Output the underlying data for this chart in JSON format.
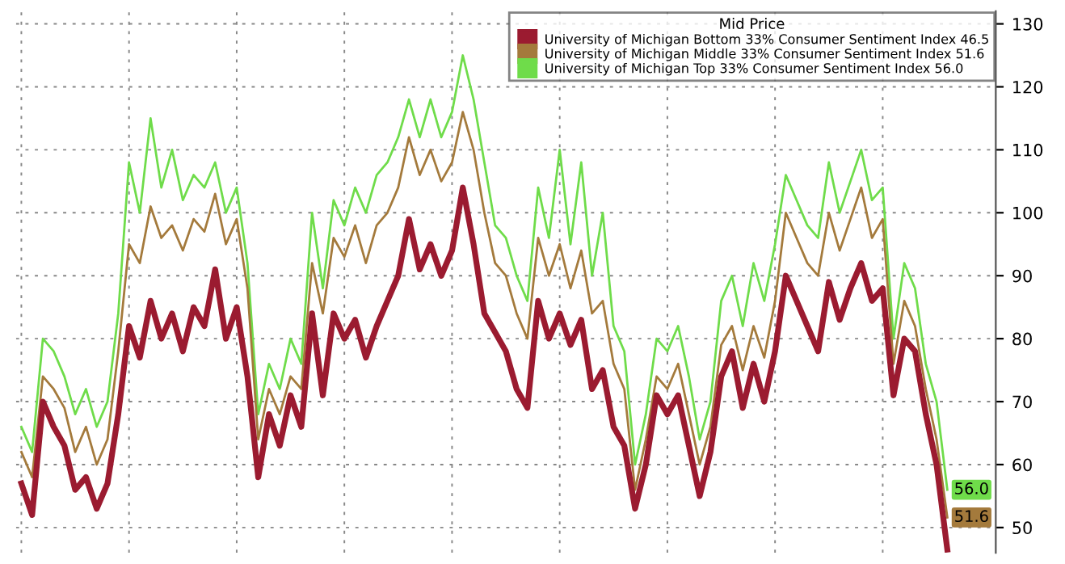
{
  "chart_data": {
    "type": "line",
    "legend_title": "Mid Price",
    "categories": [
      null,
      null,
      null,
      null,
      null,
      null,
      null,
      null,
      null,
      null,
      null,
      null,
      null,
      null,
      null,
      null,
      null,
      null,
      null,
      null,
      null,
      null,
      null,
      null,
      null,
      null,
      null,
      null,
      null,
      null,
      null,
      null,
      null,
      null,
      null,
      null,
      null,
      null,
      null,
      null,
      null,
      null,
      null,
      null,
      null,
      null,
      null,
      null,
      null,
      null,
      null,
      null,
      null,
      null,
      null,
      null,
      null,
      null,
      null,
      null,
      null,
      null,
      null,
      null,
      null,
      null,
      null,
      null,
      null,
      null,
      null,
      null,
      null,
      null,
      null,
      null,
      null,
      null,
      null,
      null,
      null,
      null,
      null,
      null,
      null,
      null,
      null
    ],
    "series": [
      {
        "name": "University of Michigan Bottom 33% Consumer Sentiment Index 46.5",
        "color": "#9b1b30",
        "values": [
          57,
          52,
          70,
          66,
          63,
          56,
          58,
          53,
          57,
          68,
          82,
          77,
          86,
          80,
          84,
          78,
          85,
          82,
          91,
          80,
          85,
          74,
          58,
          68,
          63,
          71,
          66,
          84,
          71,
          84,
          80,
          83,
          77,
          82,
          86,
          90,
          99,
          91,
          95,
          90,
          94,
          104,
          95,
          84,
          81,
          78,
          72,
          69,
          86,
          80,
          84,
          79,
          83,
          72,
          75,
          66,
          63,
          53,
          60,
          71,
          68,
          71,
          63,
          55,
          62,
          74,
          78,
          69,
          76,
          70,
          78,
          90,
          86,
          82,
          78,
          89,
          83,
          88,
          92,
          86,
          88,
          71,
          80,
          78,
          68,
          60,
          46.5
        ]
      },
      {
        "name": "University of Michigan Middle 33% Consumer Sentiment Index 51.6",
        "color": "#a47a3c",
        "values": [
          62,
          58,
          74,
          72,
          69,
          62,
          66,
          60,
          64,
          78,
          95,
          92,
          101,
          96,
          98,
          94,
          99,
          97,
          103,
          95,
          99,
          88,
          64,
          72,
          68,
          74,
          72,
          92,
          84,
          96,
          93,
          98,
          92,
          98,
          100,
          104,
          112,
          106,
          110,
          105,
          108,
          116,
          110,
          100,
          92,
          90,
          84,
          80,
          96,
          90,
          95,
          88,
          94,
          84,
          86,
          76,
          72,
          56,
          64,
          74,
          72,
          76,
          68,
          60,
          66,
          79,
          82,
          75,
          82,
          77,
          86,
          100,
          96,
          92,
          90,
          100,
          94,
          99,
          104,
          96,
          99,
          76,
          86,
          82,
          72,
          64,
          51.6
        ],
        "value_labels": [
          null,
          null,
          null,
          null,
          null,
          null,
          null,
          null,
          null,
          null,
          null,
          null,
          null,
          null,
          null,
          null,
          null,
          null,
          null,
          null,
          null,
          null,
          null,
          null,
          null,
          null,
          null,
          null,
          null,
          null,
          null,
          null,
          null,
          null,
          null,
          null,
          null,
          null,
          null,
          null,
          null,
          null,
          null,
          null,
          null,
          null,
          null,
          null,
          null,
          null,
          null,
          null,
          null,
          null,
          null,
          null,
          null,
          null,
          null,
          null,
          null,
          null,
          null,
          null,
          null,
          null,
          null,
          null,
          null,
          null,
          null,
          null,
          null,
          null,
          null,
          null,
          null,
          null,
          null,
          null,
          null,
          null,
          null,
          null,
          null,
          null,
          "51.6"
        ]
      },
      {
        "name": "University of Michigan Top 33% Consumer Sentiment Index 56.0",
        "color": "#6fdc4a",
        "values": [
          66,
          62,
          80,
          78,
          74,
          68,
          72,
          66,
          70,
          84,
          108,
          100,
          115,
          104,
          110,
          102,
          106,
          104,
          108,
          100,
          104,
          92,
          68,
          76,
          72,
          80,
          76,
          100,
          88,
          102,
          98,
          104,
          100,
          106,
          108,
          112,
          118,
          112,
          118,
          112,
          116,
          125,
          118,
          108,
          98,
          96,
          90,
          86,
          104,
          96,
          110,
          95,
          108,
          90,
          100,
          82,
          78,
          60,
          68,
          80,
          78,
          82,
          74,
          64,
          70,
          86,
          90,
          82,
          92,
          86,
          95,
          106,
          102,
          98,
          96,
          108,
          100,
          105,
          110,
          102,
          104,
          80,
          92,
          88,
          76,
          70,
          56.0
        ],
        "value_labels": [
          null,
          null,
          null,
          null,
          null,
          null,
          null,
          null,
          null,
          null,
          null,
          null,
          null,
          null,
          null,
          null,
          null,
          null,
          null,
          null,
          null,
          null,
          null,
          null,
          null,
          null,
          null,
          null,
          null,
          null,
          null,
          null,
          null,
          null,
          null,
          null,
          null,
          null,
          null,
          null,
          null,
          null,
          null,
          null,
          null,
          null,
          null,
          null,
          null,
          null,
          null,
          null,
          null,
          null,
          null,
          null,
          null,
          null,
          null,
          null,
          null,
          null,
          null,
          null,
          null,
          null,
          null,
          null,
          null,
          null,
          null,
          null,
          null,
          null,
          null,
          null,
          null,
          null,
          null,
          null,
          null,
          null,
          null,
          null,
          null,
          null,
          "56.0"
        ]
      }
    ],
    "ylim": [
      46,
      132
    ],
    "yticks": [
      50,
      60,
      70,
      80,
      90,
      100,
      110,
      120,
      130
    ],
    "grid": true,
    "legend": "top right",
    "tick_labels": "y",
    "line_style": "solid",
    "marker": "none"
  }
}
